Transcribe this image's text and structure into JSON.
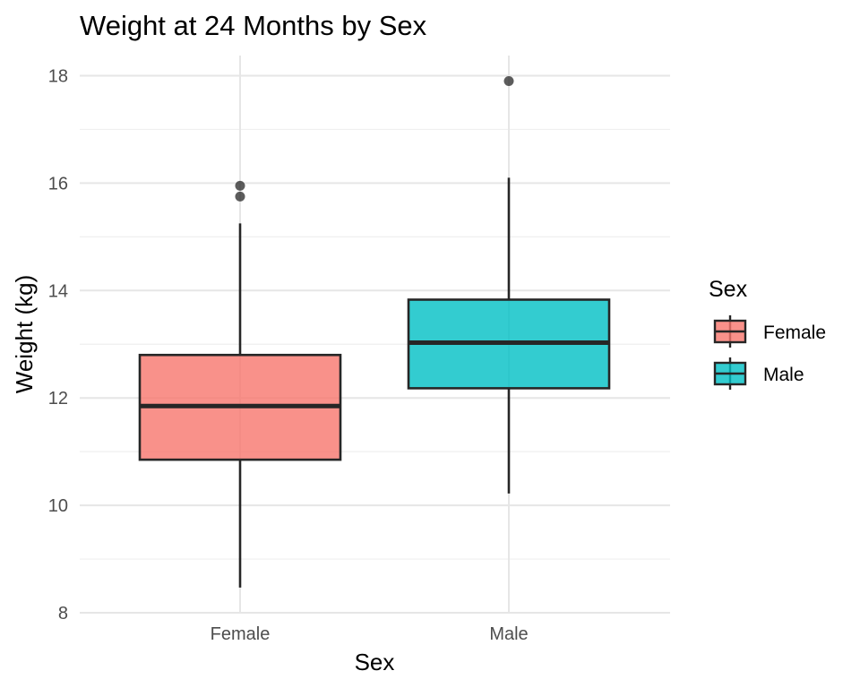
{
  "chart_data": {
    "type": "boxplot",
    "title": "Weight at 24 Months by Sex",
    "xlabel": "Sex",
    "ylabel": "Weight (kg)",
    "ylim": [
      7.9,
      18.4
    ],
    "y_ticks": [
      8,
      10,
      12,
      14,
      16,
      18
    ],
    "categories": [
      "Female",
      "Male"
    ],
    "series": [
      {
        "name": "Female",
        "color": "#F8766D",
        "min": 8.47,
        "q1": 10.85,
        "median": 11.85,
        "q3": 12.8,
        "max": 15.25,
        "outliers": [
          15.75,
          15.95
        ]
      },
      {
        "name": "Male",
        "color": "#00BFC4",
        "min": 10.22,
        "q1": 12.18,
        "median": 13.03,
        "q3": 13.83,
        "max": 16.1,
        "outliers": [
          17.9
        ]
      }
    ],
    "legend": {
      "title": "Sex",
      "position": "right",
      "entries": [
        "Female",
        "Male"
      ]
    },
    "grid": true
  }
}
